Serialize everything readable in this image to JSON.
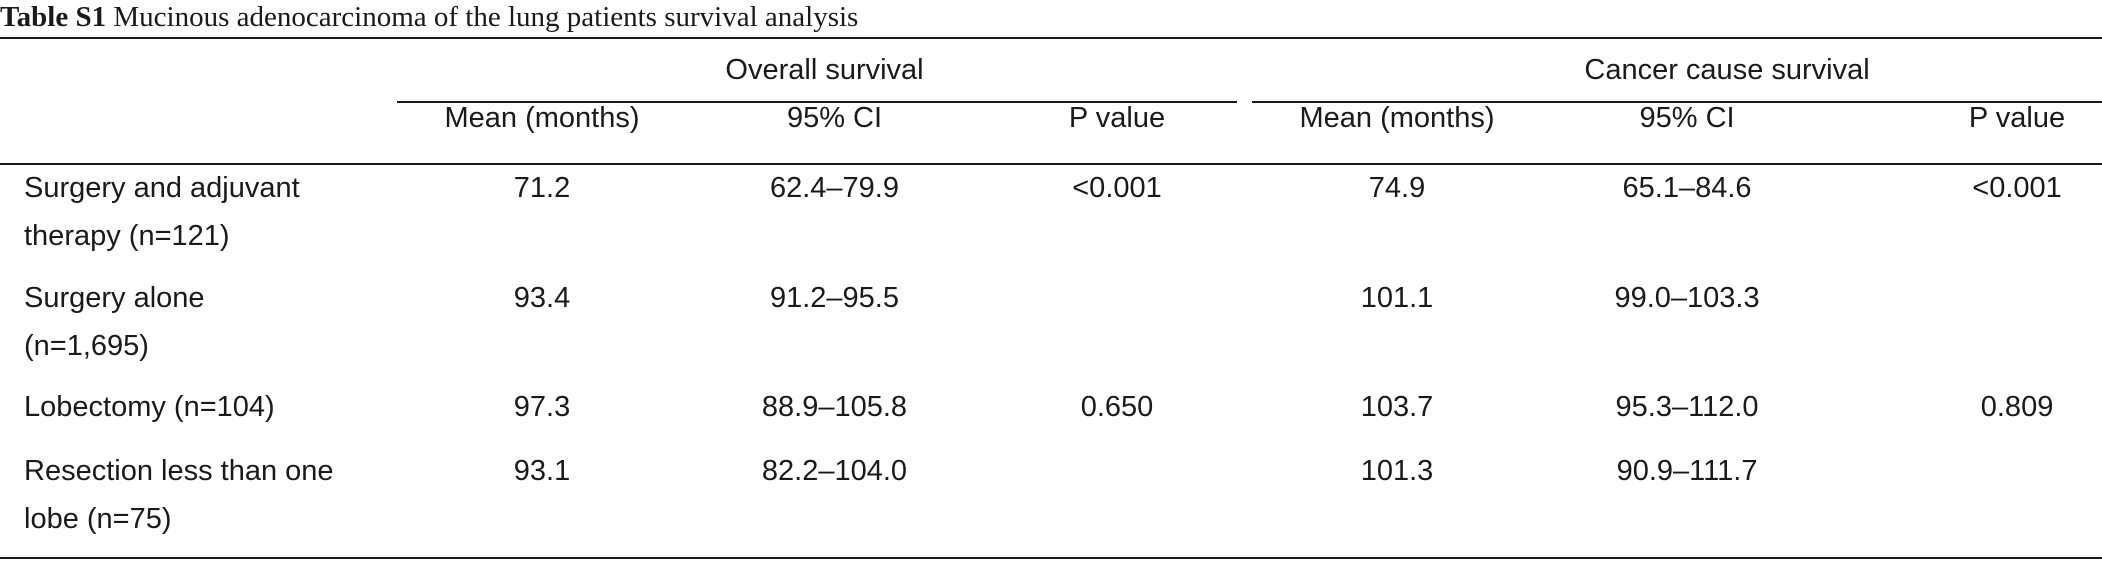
{
  "caption": {
    "label": "Table S1",
    "text": "Mucinous adenocarcinoma of the lung patients survival analysis"
  },
  "header": {
    "groups": [
      "Overall survival",
      "Cancer cause survival"
    ],
    "columns": [
      "Mean (months)",
      "95% CI",
      "P value",
      "Mean (months)",
      "95% CI",
      "P value"
    ]
  },
  "rows": [
    {
      "label": "Surgery and adjuvant therapy (n=121)",
      "label_lines": [
        "Surgery and adjuvant",
        "therapy (n=121)"
      ],
      "os_mean": "71.2",
      "os_ci": "62.4–79.9",
      "os_p": "<0.001",
      "cs_mean": "74.9",
      "cs_ci": "65.1–84.6",
      "cs_p": "<0.001"
    },
    {
      "label": "Surgery alone (n=1,695)",
      "label_lines": [
        "Surgery alone",
        "(n=1,695)"
      ],
      "os_mean": "93.4",
      "os_ci": "91.2–95.5",
      "os_p": "",
      "cs_mean": "101.1",
      "cs_ci": "99.0–103.3",
      "cs_p": ""
    },
    {
      "label": "Lobectomy (n=104)",
      "label_lines": [
        "Lobectomy (n=104)"
      ],
      "os_mean": "97.3",
      "os_ci": "88.9–105.8",
      "os_p": "0.650",
      "cs_mean": "103.7",
      "cs_ci": "95.3–112.0",
      "cs_p": "0.809"
    },
    {
      "label": "Resection less than one lobe (n=75)",
      "label_lines": [
        "Resection less than one",
        "lobe (n=75)"
      ],
      "os_mean": "93.1",
      "os_ci": "82.2–104.0",
      "os_p": "",
      "cs_mean": "101.3",
      "cs_ci": "90.9–111.7",
      "cs_p": ""
    }
  ]
}
